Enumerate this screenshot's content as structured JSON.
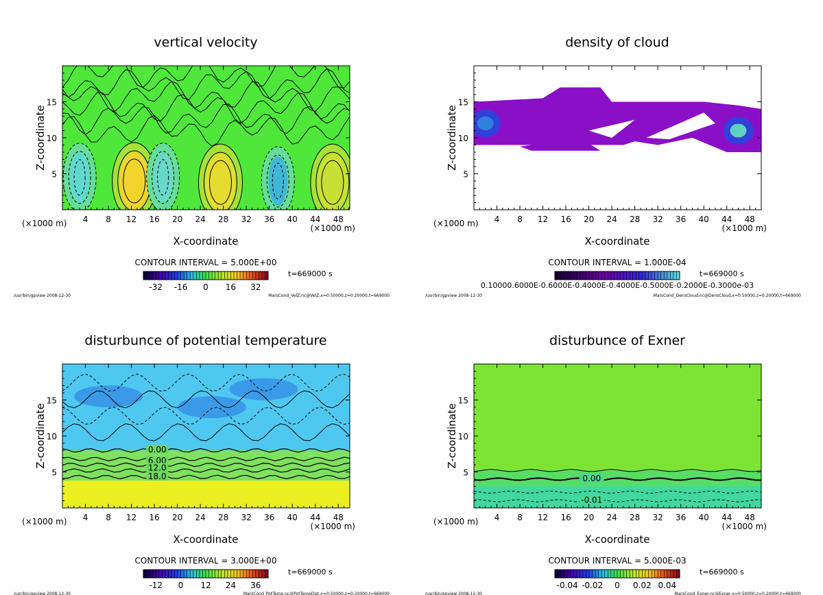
{
  "chart_data": [
    {
      "type": "contour",
      "title": "vertical velocity",
      "xlabel": "X-coordinate",
      "ylabel": "Z-coordinate",
      "xunit": "(×1000 m)",
      "xlim": [
        0,
        50
      ],
      "ylim": [
        0,
        20
      ],
      "xticks": [
        4,
        8,
        12,
        16,
        20,
        24,
        28,
        32,
        36,
        40,
        44,
        48
      ],
      "yticks": [
        5,
        10,
        15
      ],
      "contour_interval": "CONTOUR INTERVAL = 5.000E+00",
      "colorbar_ticks": [
        "-32",
        "-16",
        "0",
        "16",
        "32"
      ],
      "colorbar_range": [
        -40,
        40
      ],
      "colormap": "rainbow",
      "time": "t=669000 s",
      "footer_left": "/usr/bin/gpview 2008-12-30",
      "footer_right": "MarsCond_VelZ.nc@VelZ,x=0:50000,z=0:20000,t=669000",
      "field_color": "#4fe83a",
      "features": [
        {
          "x": 12.5,
          "z": 4.0,
          "kind": "updraft",
          "color": "#f2d42c"
        },
        {
          "x": 27.5,
          "z": 3.8,
          "kind": "updraft",
          "color": "#e6dc30"
        },
        {
          "x": 47.0,
          "z": 3.8,
          "kind": "updraft",
          "color": "#c8e034"
        },
        {
          "x": 3.0,
          "z": 4.5,
          "kind": "downdraft",
          "color": "#5fd8d0"
        },
        {
          "x": 17.5,
          "z": 4.5,
          "kind": "downdraft",
          "color": "#6ad8c8"
        },
        {
          "x": 37.5,
          "z": 4.0,
          "kind": "downdraft",
          "color": "#3fb8d8"
        }
      ]
    },
    {
      "type": "contour",
      "title": "density of cloud",
      "xlabel": "X-coordinate",
      "ylabel": "Z-coordinate",
      "xunit": "(×1000 m)",
      "xlim": [
        0,
        50
      ],
      "ylim": [
        0,
        20
      ],
      "xticks": [
        4,
        8,
        12,
        16,
        20,
        24,
        28,
        32,
        36,
        40,
        44,
        48
      ],
      "yticks": [
        5,
        10,
        15
      ],
      "contour_interval": "CONTOUR INTERVAL = 1.000E-04",
      "colorbar_ticks": [
        "0.10000.6000E-0.6000E-0.4000E-0.4000E-0.5000E-0.2000E-0.3000e-03"
      ],
      "colorbar_range": [
        0,
        1
      ],
      "colormap": "purple-blue",
      "time": "t=669000 s",
      "footer_left": "/usr/bin/gpview 2008-12-30",
      "footer_right": "MarsCond_DensCloud.nc@DensCloud,x=0:50000,z=0:20000,t=669000",
      "field_color": "#8a10c8",
      "features": [
        {
          "x": 2.0,
          "z": 12.0,
          "kind": "maximum",
          "color": "#3080e0"
        },
        {
          "x": 46.0,
          "z": 11.0,
          "kind": "maximum",
          "color": "#60d0c0"
        }
      ]
    },
    {
      "type": "contour",
      "title": "disturbunce of potential temperature",
      "xlabel": "X-coordinate",
      "ylabel": "Z-coordinate",
      "xunit": "(×1000 m)",
      "xlim": [
        0,
        50
      ],
      "ylim": [
        0,
        20
      ],
      "xticks": [
        4,
        8,
        12,
        16,
        20,
        24,
        28,
        32,
        36,
        40,
        44,
        48
      ],
      "yticks": [
        5,
        10,
        15
      ],
      "contour_interval": "CONTOUR INTERVAL = 3.000E+00",
      "colorbar_ticks": [
        "-12",
        "0",
        "12",
        "24",
        "36"
      ],
      "colorbar_range": [
        -18,
        42
      ],
      "colormap": "rainbow",
      "time": "t=669000 s",
      "footer_left": "/usr/bin/gpview 2008-12-30",
      "footer_right": "MarsCond_PotTemp.nc@PotTempDist,x=0:50000,z=0:20000,t=669000",
      "contour_labels": [
        {
          "text": "0.00",
          "x": 16.5,
          "z": 8.0
        },
        {
          "text": "6.00",
          "x": 16.5,
          "z": 6.5
        },
        {
          "text": "12.0",
          "x": 16.5,
          "z": 5.5
        },
        {
          "text": "18.0",
          "x": 16.5,
          "z": 4.3
        }
      ],
      "field_color": "#4ec8f0"
    },
    {
      "type": "contour",
      "title": "disturbunce of Exner",
      "xlabel": "X-coordinate",
      "ylabel": "Z-coordinate",
      "xunit": "(×1000 m)",
      "xlim": [
        0,
        50
      ],
      "ylim": [
        0,
        20
      ],
      "xticks": [
        4,
        8,
        12,
        16,
        20,
        24,
        28,
        32,
        36,
        40,
        44,
        48
      ],
      "yticks": [
        5,
        10,
        15
      ],
      "contour_interval": "CONTOUR INTERVAL = 5.000E-03",
      "colorbar_ticks": [
        "-0.04",
        "-0.02",
        "0",
        "0.02",
        "0.04"
      ],
      "colorbar_range": [
        -0.05,
        0.05
      ],
      "colormap": "rainbow",
      "time": "t=669000 s",
      "footer_left": "/usr/bin/gpview 2008-12-30",
      "footer_right": "MarsCond_Exner.nc@Exner,x=0:50000,z=0:20000,t=669000",
      "contour_labels": [
        {
          "text": "0.00",
          "x": 20.5,
          "z": 4.0
        },
        {
          "text": "-0.01",
          "x": 20.5,
          "z": 1.0
        }
      ],
      "field_color": "#7de434"
    }
  ]
}
